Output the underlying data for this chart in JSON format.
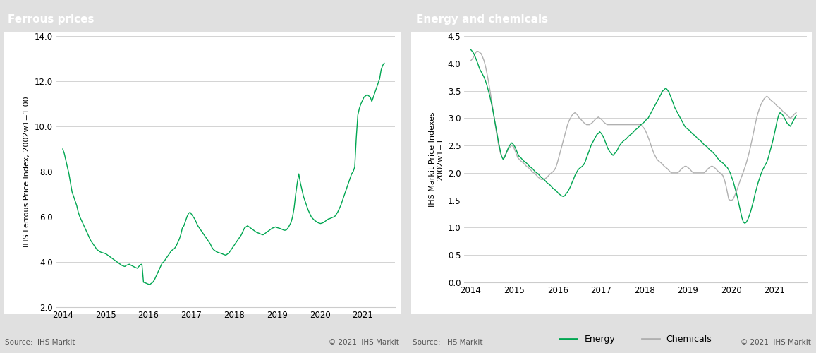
{
  "title_left": "Ferrous prices",
  "title_right": "Energy and chemicals",
  "ylabel_left": "IHS Ferrous Price Index, 2002w1=1.00",
  "ylabel_right": "IHS Markit Price Indexes\n2002w1=1",
  "source_text": "Source:  IHS Markit",
  "copyright_text": "© 2021  IHS Markit",
  "title_bg_color": "#7f7f7f",
  "title_text_color": "#ffffff",
  "panel_bg_color": "#ffffff",
  "outer_bg_color": "#e0e0e0",
  "green_color": "#00a651",
  "chemicals_color": "#b0b0b0",
  "grid_color": "#cccccc",
  "axis_color": "#cccccc",
  "left_ylim": [
    2.0,
    14.0
  ],
  "left_yticks": [
    2.0,
    4.0,
    6.0,
    8.0,
    10.0,
    12.0,
    14.0
  ],
  "right_ylim": [
    0.0,
    4.5
  ],
  "right_yticks": [
    0.0,
    0.5,
    1.0,
    1.5,
    2.0,
    2.5,
    3.0,
    3.5,
    4.0,
    4.5
  ],
  "xtick_labels": [
    "2014",
    "2015",
    "2016",
    "2017",
    "2018",
    "2019",
    "2020",
    "2021"
  ],
  "ferrous_y": [
    9.0,
    8.8,
    8.5,
    8.2,
    7.9,
    7.5,
    7.1,
    6.9,
    6.7,
    6.5,
    6.2,
    6.0,
    5.85,
    5.7,
    5.55,
    5.4,
    5.25,
    5.1,
    4.95,
    4.85,
    4.75,
    4.65,
    4.55,
    4.5,
    4.45,
    4.42,
    4.4,
    4.38,
    4.35,
    4.3,
    4.25,
    4.2,
    4.15,
    4.1,
    4.05,
    4.0,
    3.95,
    3.9,
    3.85,
    3.82,
    3.8,
    3.85,
    3.88,
    3.9,
    3.85,
    3.82,
    3.78,
    3.75,
    3.72,
    3.8,
    3.88,
    3.9,
    3.1,
    3.08,
    3.05,
    3.02,
    3.0,
    3.05,
    3.1,
    3.2,
    3.35,
    3.5,
    3.65,
    3.8,
    3.95,
    4.0,
    4.1,
    4.2,
    4.3,
    4.4,
    4.5,
    4.55,
    4.6,
    4.7,
    4.85,
    5.0,
    5.2,
    5.5,
    5.6,
    5.8,
    6.0,
    6.15,
    6.2,
    6.1,
    6.0,
    5.9,
    5.75,
    5.6,
    5.5,
    5.4,
    5.3,
    5.2,
    5.1,
    5.0,
    4.9,
    4.8,
    4.65,
    4.55,
    4.5,
    4.45,
    4.42,
    4.4,
    4.38,
    4.35,
    4.32,
    4.3,
    4.35,
    4.4,
    4.5,
    4.6,
    4.7,
    4.8,
    4.9,
    5.0,
    5.1,
    5.2,
    5.35,
    5.5,
    5.55,
    5.6,
    5.55,
    5.5,
    5.45,
    5.4,
    5.35,
    5.3,
    5.28,
    5.25,
    5.22,
    5.2,
    5.25,
    5.3,
    5.35,
    5.4,
    5.45,
    5.5,
    5.52,
    5.55,
    5.52,
    5.5,
    5.48,
    5.45,
    5.42,
    5.4,
    5.42,
    5.5,
    5.62,
    5.75,
    6.0,
    6.4,
    7.0,
    7.5,
    7.9,
    7.5,
    7.2,
    6.9,
    6.7,
    6.5,
    6.3,
    6.15,
    6.0,
    5.92,
    5.85,
    5.8,
    5.75,
    5.72,
    5.7,
    5.72,
    5.75,
    5.8,
    5.85,
    5.9,
    5.92,
    5.95,
    5.98,
    6.0,
    6.1,
    6.2,
    6.35,
    6.5,
    6.7,
    6.9,
    7.1,
    7.3,
    7.5,
    7.7,
    7.9,
    8.0,
    8.2,
    9.5,
    10.5,
    10.8,
    11.0,
    11.15,
    11.3,
    11.35,
    11.4,
    11.35,
    11.3,
    11.1,
    11.3,
    11.5,
    11.7,
    11.9,
    12.1,
    12.5,
    12.7,
    12.8
  ],
  "energy_y": [
    4.25,
    4.22,
    4.18,
    4.12,
    4.05,
    3.98,
    3.9,
    3.85,
    3.8,
    3.75,
    3.68,
    3.6,
    3.5,
    3.4,
    3.28,
    3.15,
    3.0,
    2.85,
    2.7,
    2.55,
    2.42,
    2.3,
    2.25,
    2.28,
    2.35,
    2.42,
    2.48,
    2.52,
    2.55,
    2.52,
    2.48,
    2.42,
    2.35,
    2.3,
    2.28,
    2.25,
    2.22,
    2.2,
    2.18,
    2.15,
    2.12,
    2.1,
    2.08,
    2.05,
    2.02,
    2.0,
    1.98,
    1.95,
    1.92,
    1.9,
    1.88,
    1.85,
    1.82,
    1.8,
    1.78,
    1.75,
    1.72,
    1.7,
    1.68,
    1.65,
    1.62,
    1.6,
    1.58,
    1.57,
    1.58,
    1.62,
    1.65,
    1.7,
    1.75,
    1.82,
    1.88,
    1.95,
    2.0,
    2.05,
    2.08,
    2.1,
    2.12,
    2.15,
    2.2,
    2.28,
    2.35,
    2.42,
    2.5,
    2.55,
    2.6,
    2.65,
    2.7,
    2.72,
    2.75,
    2.72,
    2.68,
    2.62,
    2.55,
    2.48,
    2.42,
    2.38,
    2.35,
    2.32,
    2.35,
    2.38,
    2.42,
    2.48,
    2.52,
    2.55,
    2.58,
    2.6,
    2.62,
    2.65,
    2.68,
    2.7,
    2.72,
    2.75,
    2.78,
    2.8,
    2.82,
    2.85,
    2.88,
    2.9,
    2.92,
    2.95,
    2.98,
    3.0,
    3.05,
    3.1,
    3.15,
    3.2,
    3.25,
    3.3,
    3.35,
    3.4,
    3.45,
    3.5,
    3.52,
    3.55,
    3.52,
    3.48,
    3.42,
    3.35,
    3.28,
    3.2,
    3.15,
    3.1,
    3.05,
    3.0,
    2.95,
    2.9,
    2.85,
    2.82,
    2.8,
    2.78,
    2.75,
    2.72,
    2.7,
    2.68,
    2.65,
    2.62,
    2.6,
    2.58,
    2.55,
    2.52,
    2.5,
    2.48,
    2.45,
    2.42,
    2.4,
    2.38,
    2.35,
    2.32,
    2.28,
    2.25,
    2.22,
    2.2,
    2.18,
    2.15,
    2.12,
    2.1,
    2.05,
    2.0,
    1.92,
    1.85,
    1.75,
    1.65,
    1.55,
    1.42,
    1.3,
    1.18,
    1.1,
    1.08,
    1.1,
    1.15,
    1.22,
    1.3,
    1.4,
    1.5,
    1.62,
    1.72,
    1.82,
    1.9,
    1.98,
    2.05,
    2.1,
    2.15,
    2.2,
    2.28,
    2.38,
    2.48,
    2.58,
    2.7,
    2.82,
    2.95,
    3.05,
    3.1,
    3.08,
    3.05,
    3.0,
    2.95,
    2.9,
    2.88,
    2.85,
    2.9,
    2.95,
    3.0,
    3.05
  ],
  "chemicals_y": [
    4.05,
    4.08,
    4.12,
    4.18,
    4.22,
    4.22,
    4.2,
    4.18,
    4.12,
    4.05,
    3.95,
    3.82,
    3.68,
    3.52,
    3.35,
    3.18,
    3.0,
    2.82,
    2.65,
    2.5,
    2.38,
    2.3,
    2.28,
    2.3,
    2.35,
    2.4,
    2.45,
    2.48,
    2.5,
    2.48,
    2.42,
    2.35,
    2.28,
    2.25,
    2.22,
    2.2,
    2.18,
    2.15,
    2.12,
    2.1,
    2.08,
    2.05,
    2.02,
    2.0,
    1.98,
    1.95,
    1.92,
    1.9,
    1.88,
    1.88,
    1.88,
    1.9,
    1.92,
    1.95,
    1.98,
    2.0,
    2.02,
    2.05,
    2.1,
    2.18,
    2.28,
    2.38,
    2.48,
    2.58,
    2.68,
    2.78,
    2.88,
    2.95,
    3.0,
    3.05,
    3.08,
    3.1,
    3.08,
    3.05,
    3.0,
    2.98,
    2.95,
    2.92,
    2.9,
    2.88,
    2.88,
    2.88,
    2.9,
    2.92,
    2.95,
    2.98,
    3.0,
    3.02,
    3.0,
    2.98,
    2.95,
    2.92,
    2.9,
    2.88,
    2.88,
    2.88,
    2.88,
    2.88,
    2.88,
    2.88,
    2.88,
    2.88,
    2.88,
    2.88,
    2.88,
    2.88,
    2.88,
    2.88,
    2.88,
    2.88,
    2.88,
    2.88,
    2.88,
    2.88,
    2.88,
    2.88,
    2.88,
    2.85,
    2.82,
    2.78,
    2.72,
    2.65,
    2.58,
    2.5,
    2.42,
    2.35,
    2.3,
    2.25,
    2.22,
    2.2,
    2.18,
    2.15,
    2.12,
    2.1,
    2.08,
    2.05,
    2.02,
    2.0,
    2.0,
    2.0,
    2.0,
    2.0,
    2.02,
    2.05,
    2.08,
    2.1,
    2.12,
    2.12,
    2.1,
    2.08,
    2.05,
    2.02,
    2.0,
    2.0,
    2.0,
    2.0,
    2.0,
    2.0,
    2.0,
    2.0,
    2.02,
    2.05,
    2.08,
    2.1,
    2.12,
    2.12,
    2.1,
    2.08,
    2.05,
    2.02,
    2.0,
    1.98,
    1.95,
    1.88,
    1.78,
    1.65,
    1.52,
    1.5,
    1.5,
    1.52,
    1.58,
    1.65,
    1.72,
    1.8,
    1.88,
    1.95,
    2.02,
    2.1,
    2.18,
    2.28,
    2.38,
    2.5,
    2.62,
    2.75,
    2.88,
    3.0,
    3.1,
    3.18,
    3.25,
    3.3,
    3.35,
    3.38,
    3.4,
    3.38,
    3.35,
    3.32,
    3.3,
    3.28,
    3.25,
    3.22,
    3.2,
    3.18,
    3.15,
    3.12,
    3.1,
    3.08,
    3.05,
    3.02,
    3.0,
    3.02,
    3.05,
    3.08,
    3.1
  ]
}
